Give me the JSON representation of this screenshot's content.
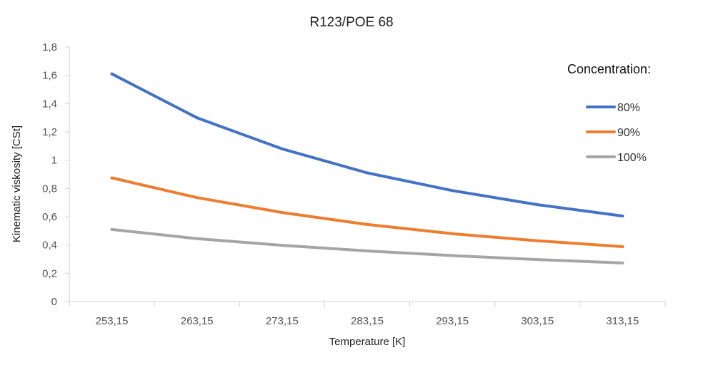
{
  "chart_data": {
    "type": "line",
    "title": "R123/POE 68",
    "xlabel": "Temperature [K]",
    "ylabel": "Kinematic viskosity  [CSt]",
    "categories": [
      "253,15",
      "263,15",
      "273,15",
      "283,15",
      "293,15",
      "303,15",
      "313,15"
    ],
    "yticks": [
      "0",
      "0,2",
      "0,4",
      "0,6",
      "0,8",
      "1",
      "1,2",
      "1,4",
      "1,6",
      "1,8"
    ],
    "ylim": [
      0,
      1.8
    ],
    "legend_title": "Concentration:",
    "legend_position": "right",
    "grid": false,
    "series": [
      {
        "name": "80%",
        "color": "#4472c4",
        "values": [
          1.61,
          1.3,
          1.08,
          0.91,
          0.785,
          0.685,
          0.605
        ]
      },
      {
        "name": "90%",
        "color": "#ed7d31",
        "values": [
          0.875,
          0.735,
          0.63,
          0.545,
          0.48,
          0.43,
          0.388
        ]
      },
      {
        "name": "100%",
        "color": "#a5a5a5",
        "values": [
          0.51,
          0.445,
          0.398,
          0.358,
          0.325,
          0.297,
          0.273
        ]
      }
    ]
  }
}
